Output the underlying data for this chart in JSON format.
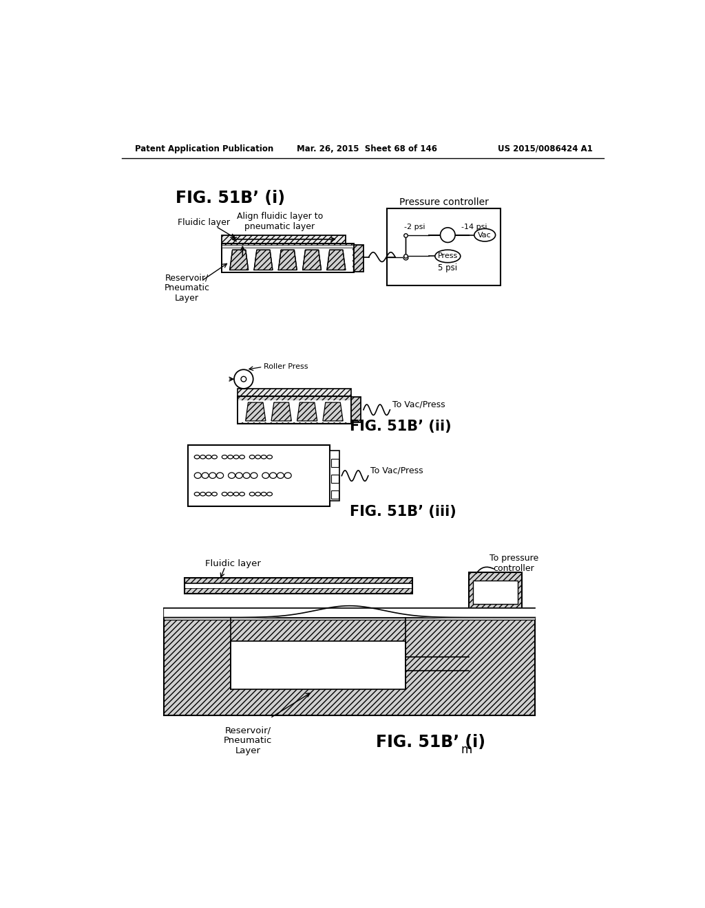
{
  "header_left": "Patent Application Publication",
  "header_mid": "Mar. 26, 2015  Sheet 68 of 146",
  "header_right": "US 2015/0086424 A1",
  "bg_color": "#ffffff",
  "line_color": "#000000"
}
